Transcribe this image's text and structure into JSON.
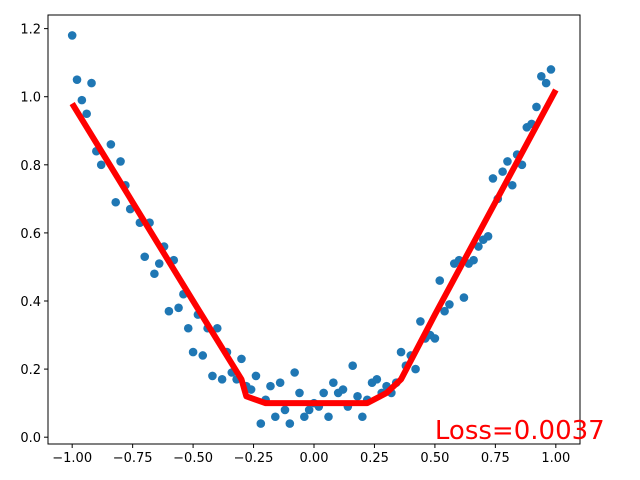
{
  "chart_data": {
    "type": "scatter",
    "title": "",
    "xlabel": "",
    "ylabel": "",
    "xlim": [
      -1.1,
      1.1
    ],
    "ylim": [
      -0.02,
      1.24
    ],
    "x_ticks": [
      -1.0,
      -0.75,
      -0.5,
      -0.25,
      0.0,
      0.25,
      0.5,
      0.75,
      1.0
    ],
    "x_tick_labels": [
      "−1.00",
      "−0.75",
      "−0.50",
      "−0.25",
      "0.00",
      "0.25",
      "0.50",
      "0.75",
      "1.00"
    ],
    "y_ticks": [
      0.0,
      0.2,
      0.4,
      0.6,
      0.8,
      1.0,
      1.2
    ],
    "y_tick_labels": [
      "0.0",
      "0.2",
      "0.4",
      "0.6",
      "0.8",
      "1.0",
      "1.2"
    ],
    "grid": false,
    "scatter": {
      "color": "#1f77b4",
      "points": [
        [
          -1.0,
          1.18
        ],
        [
          -0.98,
          1.05
        ],
        [
          -0.96,
          0.99
        ],
        [
          -0.94,
          0.95
        ],
        [
          -0.92,
          1.04
        ],
        [
          -0.9,
          0.84
        ],
        [
          -0.88,
          0.8
        ],
        [
          -0.84,
          0.86
        ],
        [
          -0.82,
          0.69
        ],
        [
          -0.8,
          0.81
        ],
        [
          -0.78,
          0.74
        ],
        [
          -0.76,
          0.67
        ],
        [
          -0.72,
          0.63
        ],
        [
          -0.7,
          0.53
        ],
        [
          -0.68,
          0.63
        ],
        [
          -0.66,
          0.48
        ],
        [
          -0.64,
          0.51
        ],
        [
          -0.62,
          0.56
        ],
        [
          -0.6,
          0.37
        ],
        [
          -0.58,
          0.52
        ],
        [
          -0.56,
          0.38
        ],
        [
          -0.54,
          0.42
        ],
        [
          -0.52,
          0.32
        ],
        [
          -0.5,
          0.25
        ],
        [
          -0.48,
          0.36
        ],
        [
          -0.46,
          0.24
        ],
        [
          -0.44,
          0.32
        ],
        [
          -0.42,
          0.18
        ],
        [
          -0.4,
          0.32
        ],
        [
          -0.38,
          0.17
        ],
        [
          -0.36,
          0.25
        ],
        [
          -0.34,
          0.19
        ],
        [
          -0.32,
          0.17
        ],
        [
          -0.3,
          0.23
        ],
        [
          -0.28,
          0.15
        ],
        [
          -0.26,
          0.14
        ],
        [
          -0.24,
          0.18
        ],
        [
          -0.22,
          0.04
        ],
        [
          -0.2,
          0.11
        ],
        [
          -0.18,
          0.15
        ],
        [
          -0.16,
          0.06
        ],
        [
          -0.14,
          0.16
        ],
        [
          -0.12,
          0.08
        ],
        [
          -0.1,
          0.04
        ],
        [
          -0.08,
          0.19
        ],
        [
          -0.06,
          0.13
        ],
        [
          -0.04,
          0.06
        ],
        [
          -0.02,
          0.08
        ],
        [
          0.0,
          0.1
        ],
        [
          0.02,
          0.09
        ],
        [
          0.04,
          0.13
        ],
        [
          0.06,
          0.06
        ],
        [
          0.08,
          0.16
        ],
        [
          0.1,
          0.13
        ],
        [
          0.12,
          0.14
        ],
        [
          0.14,
          0.09
        ],
        [
          0.16,
          0.21
        ],
        [
          0.18,
          0.12
        ],
        [
          0.2,
          0.06
        ],
        [
          0.22,
          0.11
        ],
        [
          0.24,
          0.16
        ],
        [
          0.26,
          0.17
        ],
        [
          0.28,
          0.13
        ],
        [
          0.3,
          0.15
        ],
        [
          0.32,
          0.13
        ],
        [
          0.34,
          0.16
        ],
        [
          0.36,
          0.25
        ],
        [
          0.38,
          0.21
        ],
        [
          0.4,
          0.24
        ],
        [
          0.42,
          0.2
        ],
        [
          0.44,
          0.34
        ],
        [
          0.46,
          0.29
        ],
        [
          0.48,
          0.3
        ],
        [
          0.5,
          0.29
        ],
        [
          0.52,
          0.46
        ],
        [
          0.54,
          0.37
        ],
        [
          0.56,
          0.39
        ],
        [
          0.58,
          0.51
        ],
        [
          0.6,
          0.52
        ],
        [
          0.62,
          0.41
        ],
        [
          0.64,
          0.51
        ],
        [
          0.66,
          0.52
        ],
        [
          0.68,
          0.56
        ],
        [
          0.7,
          0.58
        ],
        [
          0.72,
          0.59
        ],
        [
          0.74,
          0.76
        ],
        [
          0.76,
          0.7
        ],
        [
          0.78,
          0.78
        ],
        [
          0.8,
          0.81
        ],
        [
          0.82,
          0.74
        ],
        [
          0.84,
          0.83
        ],
        [
          0.86,
          0.8
        ],
        [
          0.88,
          0.91
        ],
        [
          0.9,
          0.92
        ],
        [
          0.92,
          0.97
        ],
        [
          0.94,
          1.06
        ],
        [
          0.96,
          1.04
        ],
        [
          0.98,
          1.08
        ]
      ]
    },
    "fit_line": {
      "color": "#ff0000",
      "points": [
        [
          -1.0,
          0.98
        ],
        [
          -0.75,
          0.69
        ],
        [
          -0.5,
          0.4
        ],
        [
          -0.3,
          0.17
        ],
        [
          -0.28,
          0.12
        ],
        [
          -0.2,
          0.1
        ],
        [
          0.0,
          0.1
        ],
        [
          0.22,
          0.1
        ],
        [
          0.3,
          0.13
        ],
        [
          0.36,
          0.17
        ],
        [
          0.5,
          0.36
        ],
        [
          0.75,
          0.69
        ],
        [
          1.0,
          1.02
        ]
      ]
    },
    "annotation": {
      "text": "Loss=0.0037",
      "x": 0.5,
      "y": 0.0,
      "color": "#ff0000"
    }
  }
}
